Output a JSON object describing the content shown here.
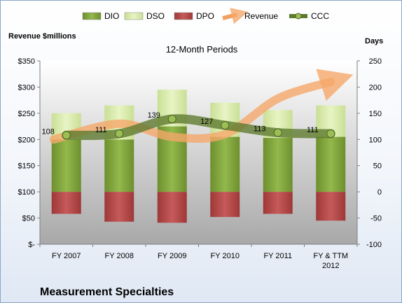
{
  "chart_data": {
    "type": "bar",
    "title": "12-Month Periods",
    "company": "Measurement Specialties",
    "left_axis_label": "Revenue $millions",
    "right_axis_label": "Days",
    "categories": [
      "FY 2007",
      "FY 2008",
      "FY 2009",
      "FY 2010",
      "FY 2011",
      "FY & TTM 2012"
    ],
    "left_axis": {
      "ylim": [
        0,
        350
      ],
      "ticks": [
        0,
        50,
        100,
        150,
        200,
        250,
        300,
        350
      ],
      "tick_labels": [
        "$-",
        "$50",
        "$100",
        "$150",
        "$200",
        "$250",
        "$300",
        "$350"
      ]
    },
    "right_axis": {
      "ylim": [
        -100,
        250
      ],
      "ticks": [
        -100,
        -50,
        0,
        50,
        100,
        150,
        200,
        250
      ],
      "tick_labels": [
        "-100",
        "-50",
        "0",
        "50",
        "100",
        "150",
        "200",
        "250"
      ]
    },
    "legend": {
      "position": "top",
      "entries": [
        {
          "name": "DIO",
          "color": "#7fa33a"
        },
        {
          "name": "DSO",
          "color": "#d9ecab"
        },
        {
          "name": "DPO",
          "color": "#b84a4a"
        },
        {
          "name": "Revenue",
          "color": "#f0a060"
        },
        {
          "name": "CCC",
          "color": "#5f7a30"
        }
      ]
    },
    "series": [
      {
        "name": "DIO",
        "axis": "right",
        "values": [
          100,
          100,
          125,
          105,
          103,
          105
        ]
      },
      {
        "name": "DSO",
        "axis": "right",
        "values": [
          50,
          65,
          70,
          65,
          53,
          60
        ]
      },
      {
        "name": "DPO",
        "axis": "right",
        "values": [
          -42,
          -57,
          -59,
          -48,
          -42,
          -55
        ]
      },
      {
        "name": "CCC",
        "axis": "right",
        "values": [
          108,
          111,
          139,
          127,
          113,
          111
        ]
      },
      {
        "name": "Revenue",
        "axis": "left",
        "values": [
          200,
          230,
          205,
          210,
          278,
          310
        ]
      }
    ],
    "data_labels": [
      "108",
      "111",
      "139",
      "127",
      "113",
      "111"
    ],
    "grid": false
  }
}
